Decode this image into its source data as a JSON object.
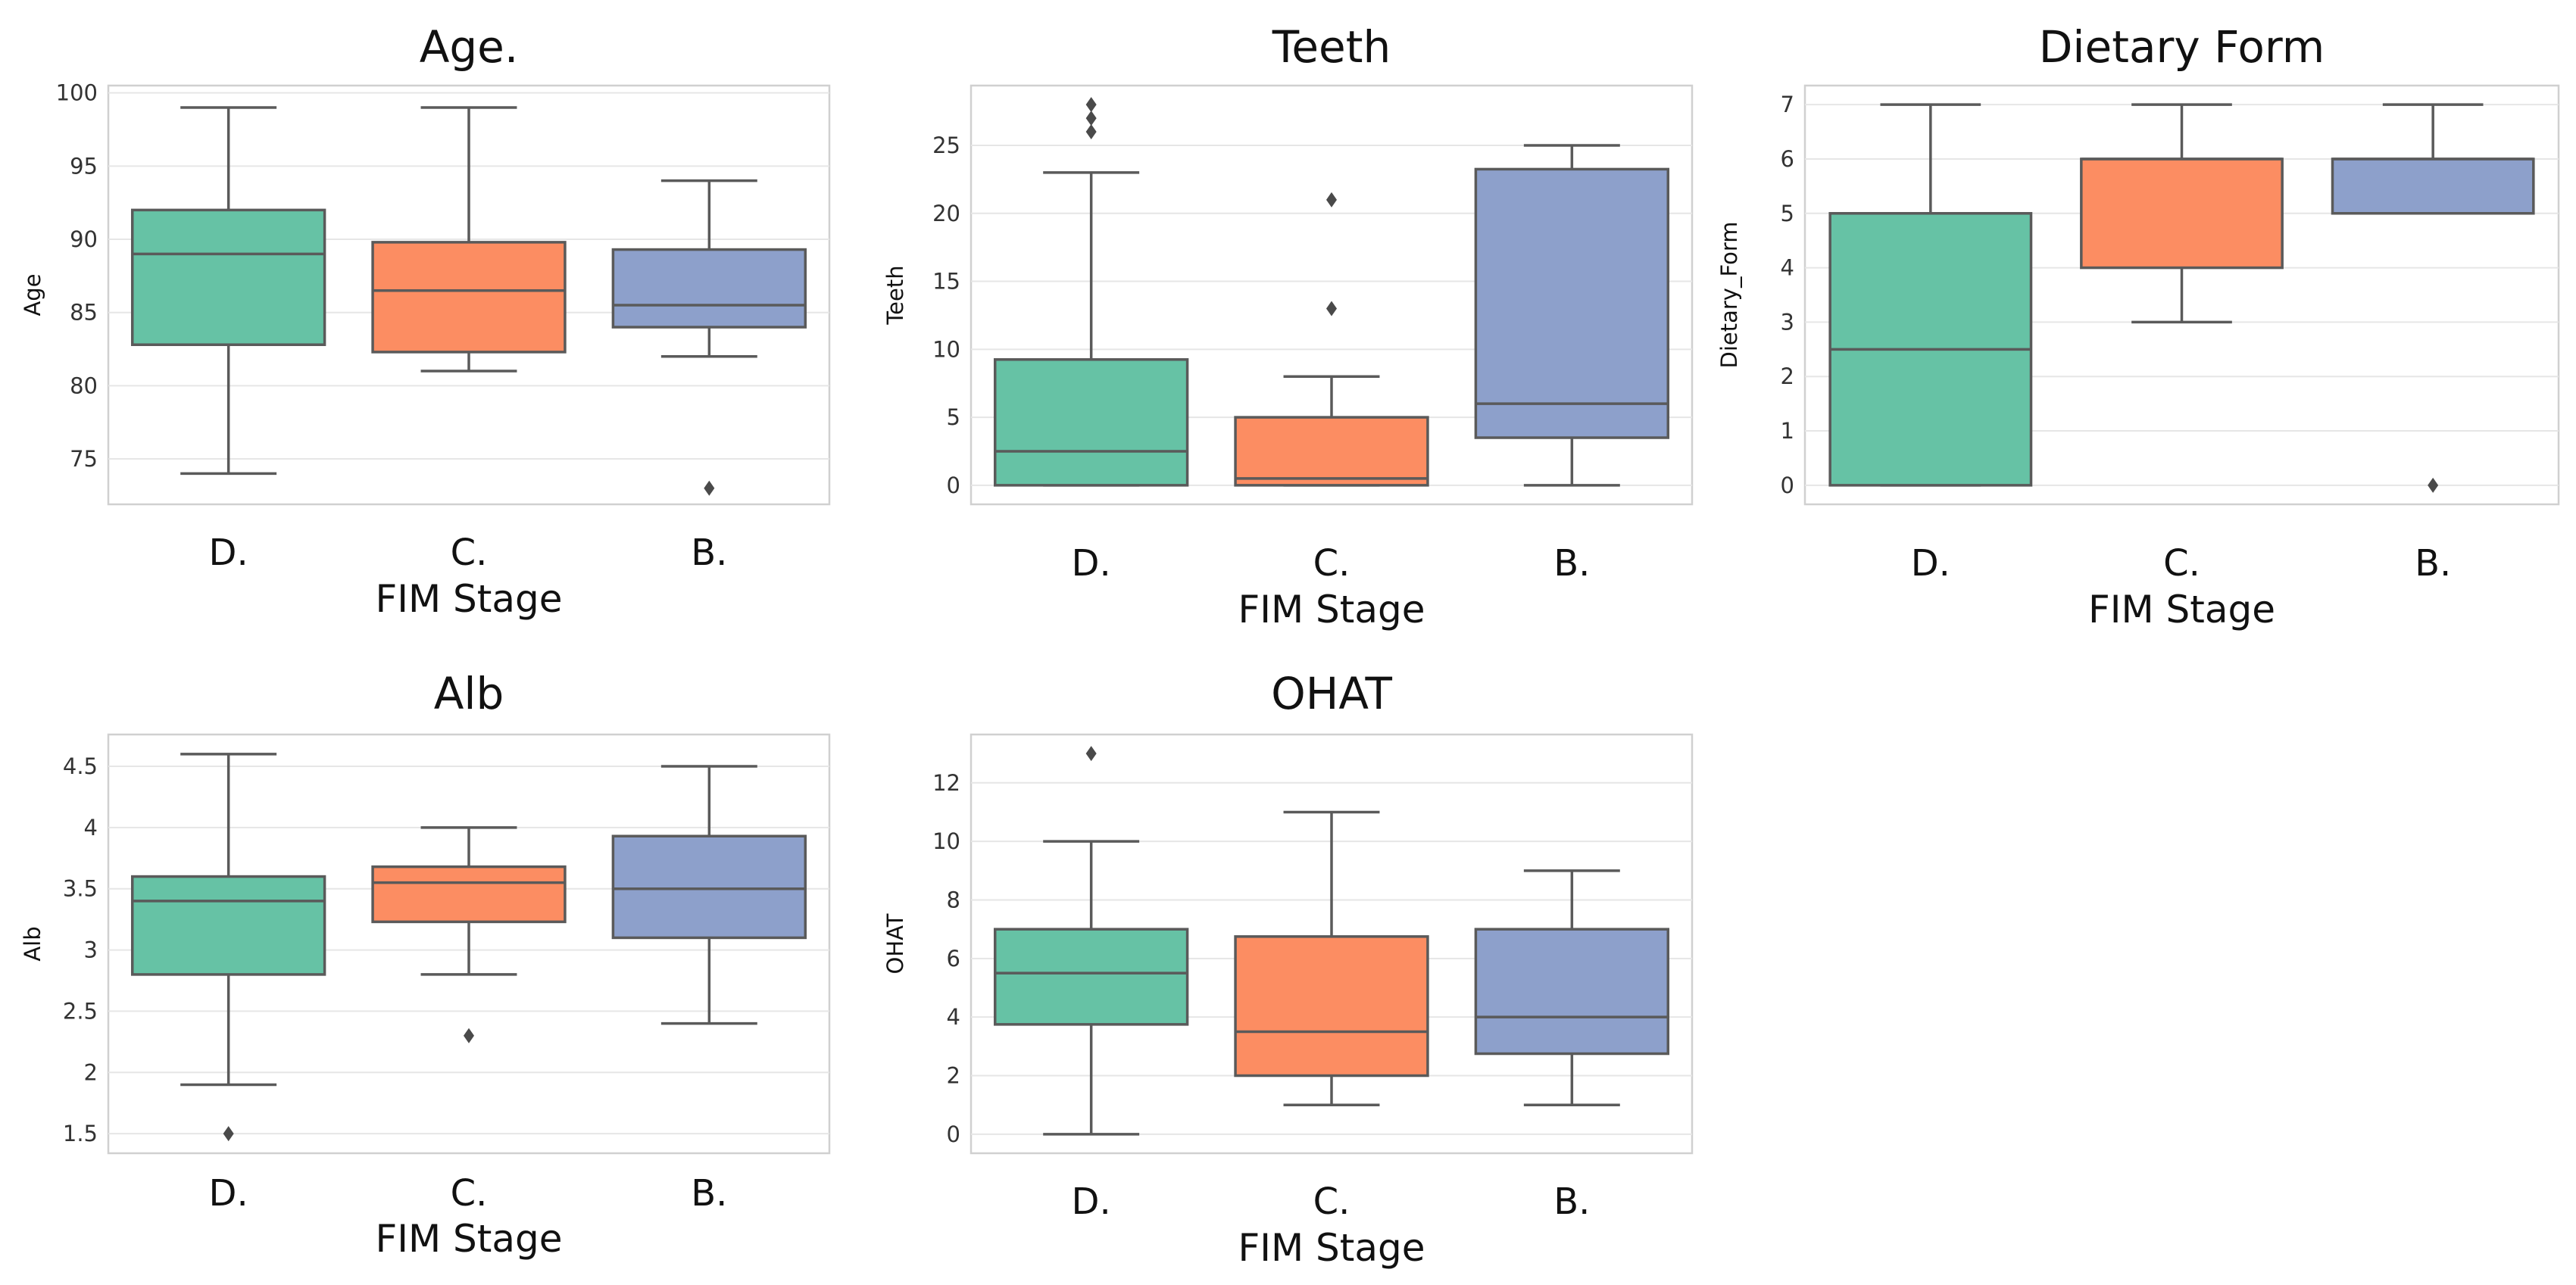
{
  "chart_data": [
    {
      "type": "box",
      "title": "Age.",
      "xlabel": "FIM Stage",
      "ylabel": "Age",
      "categories": [
        "D.",
        "C.",
        "B."
      ],
      "colors": [
        "#66c2a5",
        "#fc8d62",
        "#8da0cb"
      ],
      "ylim": [
        71.9,
        100.5
      ],
      "yticks": [
        75,
        80,
        85,
        90,
        95,
        100
      ],
      "boxes": [
        {
          "whislo": 74,
          "q1": 82.8,
          "med": 89,
          "q3": 92,
          "whishi": 99,
          "fliers": []
        },
        {
          "whislo": 81,
          "q1": 82.3,
          "med": 86.5,
          "q3": 89.8,
          "whishi": 99,
          "fliers": []
        },
        {
          "whislo": 82,
          "q1": 84,
          "med": 85.5,
          "q3": 89.3,
          "whishi": 94,
          "fliers": [
            73
          ]
        }
      ],
      "grid": true
    },
    {
      "type": "box",
      "title": "Teeth",
      "xlabel": "FIM Stage",
      "ylabel": "Teeth",
      "categories": [
        "D.",
        "C.",
        "B."
      ],
      "colors": [
        "#66c2a5",
        "#fc8d62",
        "#8da0cb"
      ],
      "ylim": [
        -1.4,
        29.4
      ],
      "yticks": [
        0,
        5,
        10,
        15,
        20,
        25
      ],
      "boxes": [
        {
          "whislo": 0,
          "q1": 0,
          "med": 2.5,
          "q3": 9.25,
          "whishi": 23,
          "fliers": [
            26,
            27,
            28
          ]
        },
        {
          "whislo": 0,
          "q1": 0,
          "med": 0.5,
          "q3": 5,
          "whishi": 8,
          "fliers": [
            13,
            21
          ]
        },
        {
          "whislo": 0,
          "q1": 3.5,
          "med": 6,
          "q3": 23.25,
          "whishi": 25,
          "fliers": []
        }
      ],
      "grid": true
    },
    {
      "type": "box",
      "title": "Dietary Form",
      "xlabel": "FIM Stage",
      "ylabel": "Dietary_Form",
      "categories": [
        "D.",
        "C.",
        "B."
      ],
      "colors": [
        "#66c2a5",
        "#fc8d62",
        "#8da0cb"
      ],
      "ylim": [
        -0.35,
        7.35
      ],
      "yticks": [
        0,
        1,
        2,
        3,
        4,
        5,
        6,
        7
      ],
      "boxes": [
        {
          "whislo": 0,
          "q1": 0,
          "med": 2.5,
          "q3": 5,
          "whishi": 7,
          "fliers": []
        },
        {
          "whislo": 3,
          "q1": 4,
          "med": 6,
          "q3": 6,
          "whishi": 7,
          "fliers": []
        },
        {
          "whislo": 5,
          "q1": 5,
          "med": 6,
          "q3": 6,
          "whishi": 7,
          "fliers": [
            0
          ]
        }
      ],
      "grid": true
    },
    {
      "type": "box",
      "title": "Alb",
      "xlabel": "FIM Stage",
      "ylabel": "Alb",
      "categories": [
        "D.",
        "C.",
        "B."
      ],
      "colors": [
        "#66c2a5",
        "#fc8d62",
        "#8da0cb"
      ],
      "ylim": [
        1.34,
        4.76
      ],
      "yticks": [
        1.5,
        2.0,
        2.5,
        3.0,
        3.5,
        4.0,
        4.5
      ],
      "boxes": [
        {
          "whislo": 1.9,
          "q1": 2.8,
          "med": 3.4,
          "q3": 3.6,
          "whishi": 4.6,
          "fliers": [
            1.5
          ]
        },
        {
          "whislo": 2.8,
          "q1": 3.23,
          "med": 3.55,
          "q3": 3.68,
          "whishi": 4.0,
          "fliers": [
            2.3
          ]
        },
        {
          "whislo": 2.4,
          "q1": 3.1,
          "med": 3.5,
          "q3": 3.93,
          "whishi": 4.5,
          "fliers": []
        }
      ],
      "grid": true
    },
    {
      "type": "box",
      "title": "OHAT",
      "xlabel": "FIM Stage",
      "ylabel": "OHAT",
      "categories": [
        "D.",
        "C.",
        "B."
      ],
      "colors": [
        "#66c2a5",
        "#fc8d62",
        "#8da0cb"
      ],
      "ylim": [
        -0.65,
        13.65
      ],
      "yticks": [
        0,
        2,
        4,
        6,
        8,
        10,
        12
      ],
      "boxes": [
        {
          "whislo": 0,
          "q1": 3.75,
          "med": 5.5,
          "q3": 7,
          "whishi": 10,
          "fliers": [
            13
          ]
        },
        {
          "whislo": 1,
          "q1": 2,
          "med": 3.5,
          "q3": 6.75,
          "whishi": 11,
          "fliers": []
        },
        {
          "whislo": 1,
          "q1": 2.75,
          "med": 4,
          "q3": 7,
          "whishi": 9,
          "fliers": []
        }
      ],
      "grid": true
    }
  ]
}
